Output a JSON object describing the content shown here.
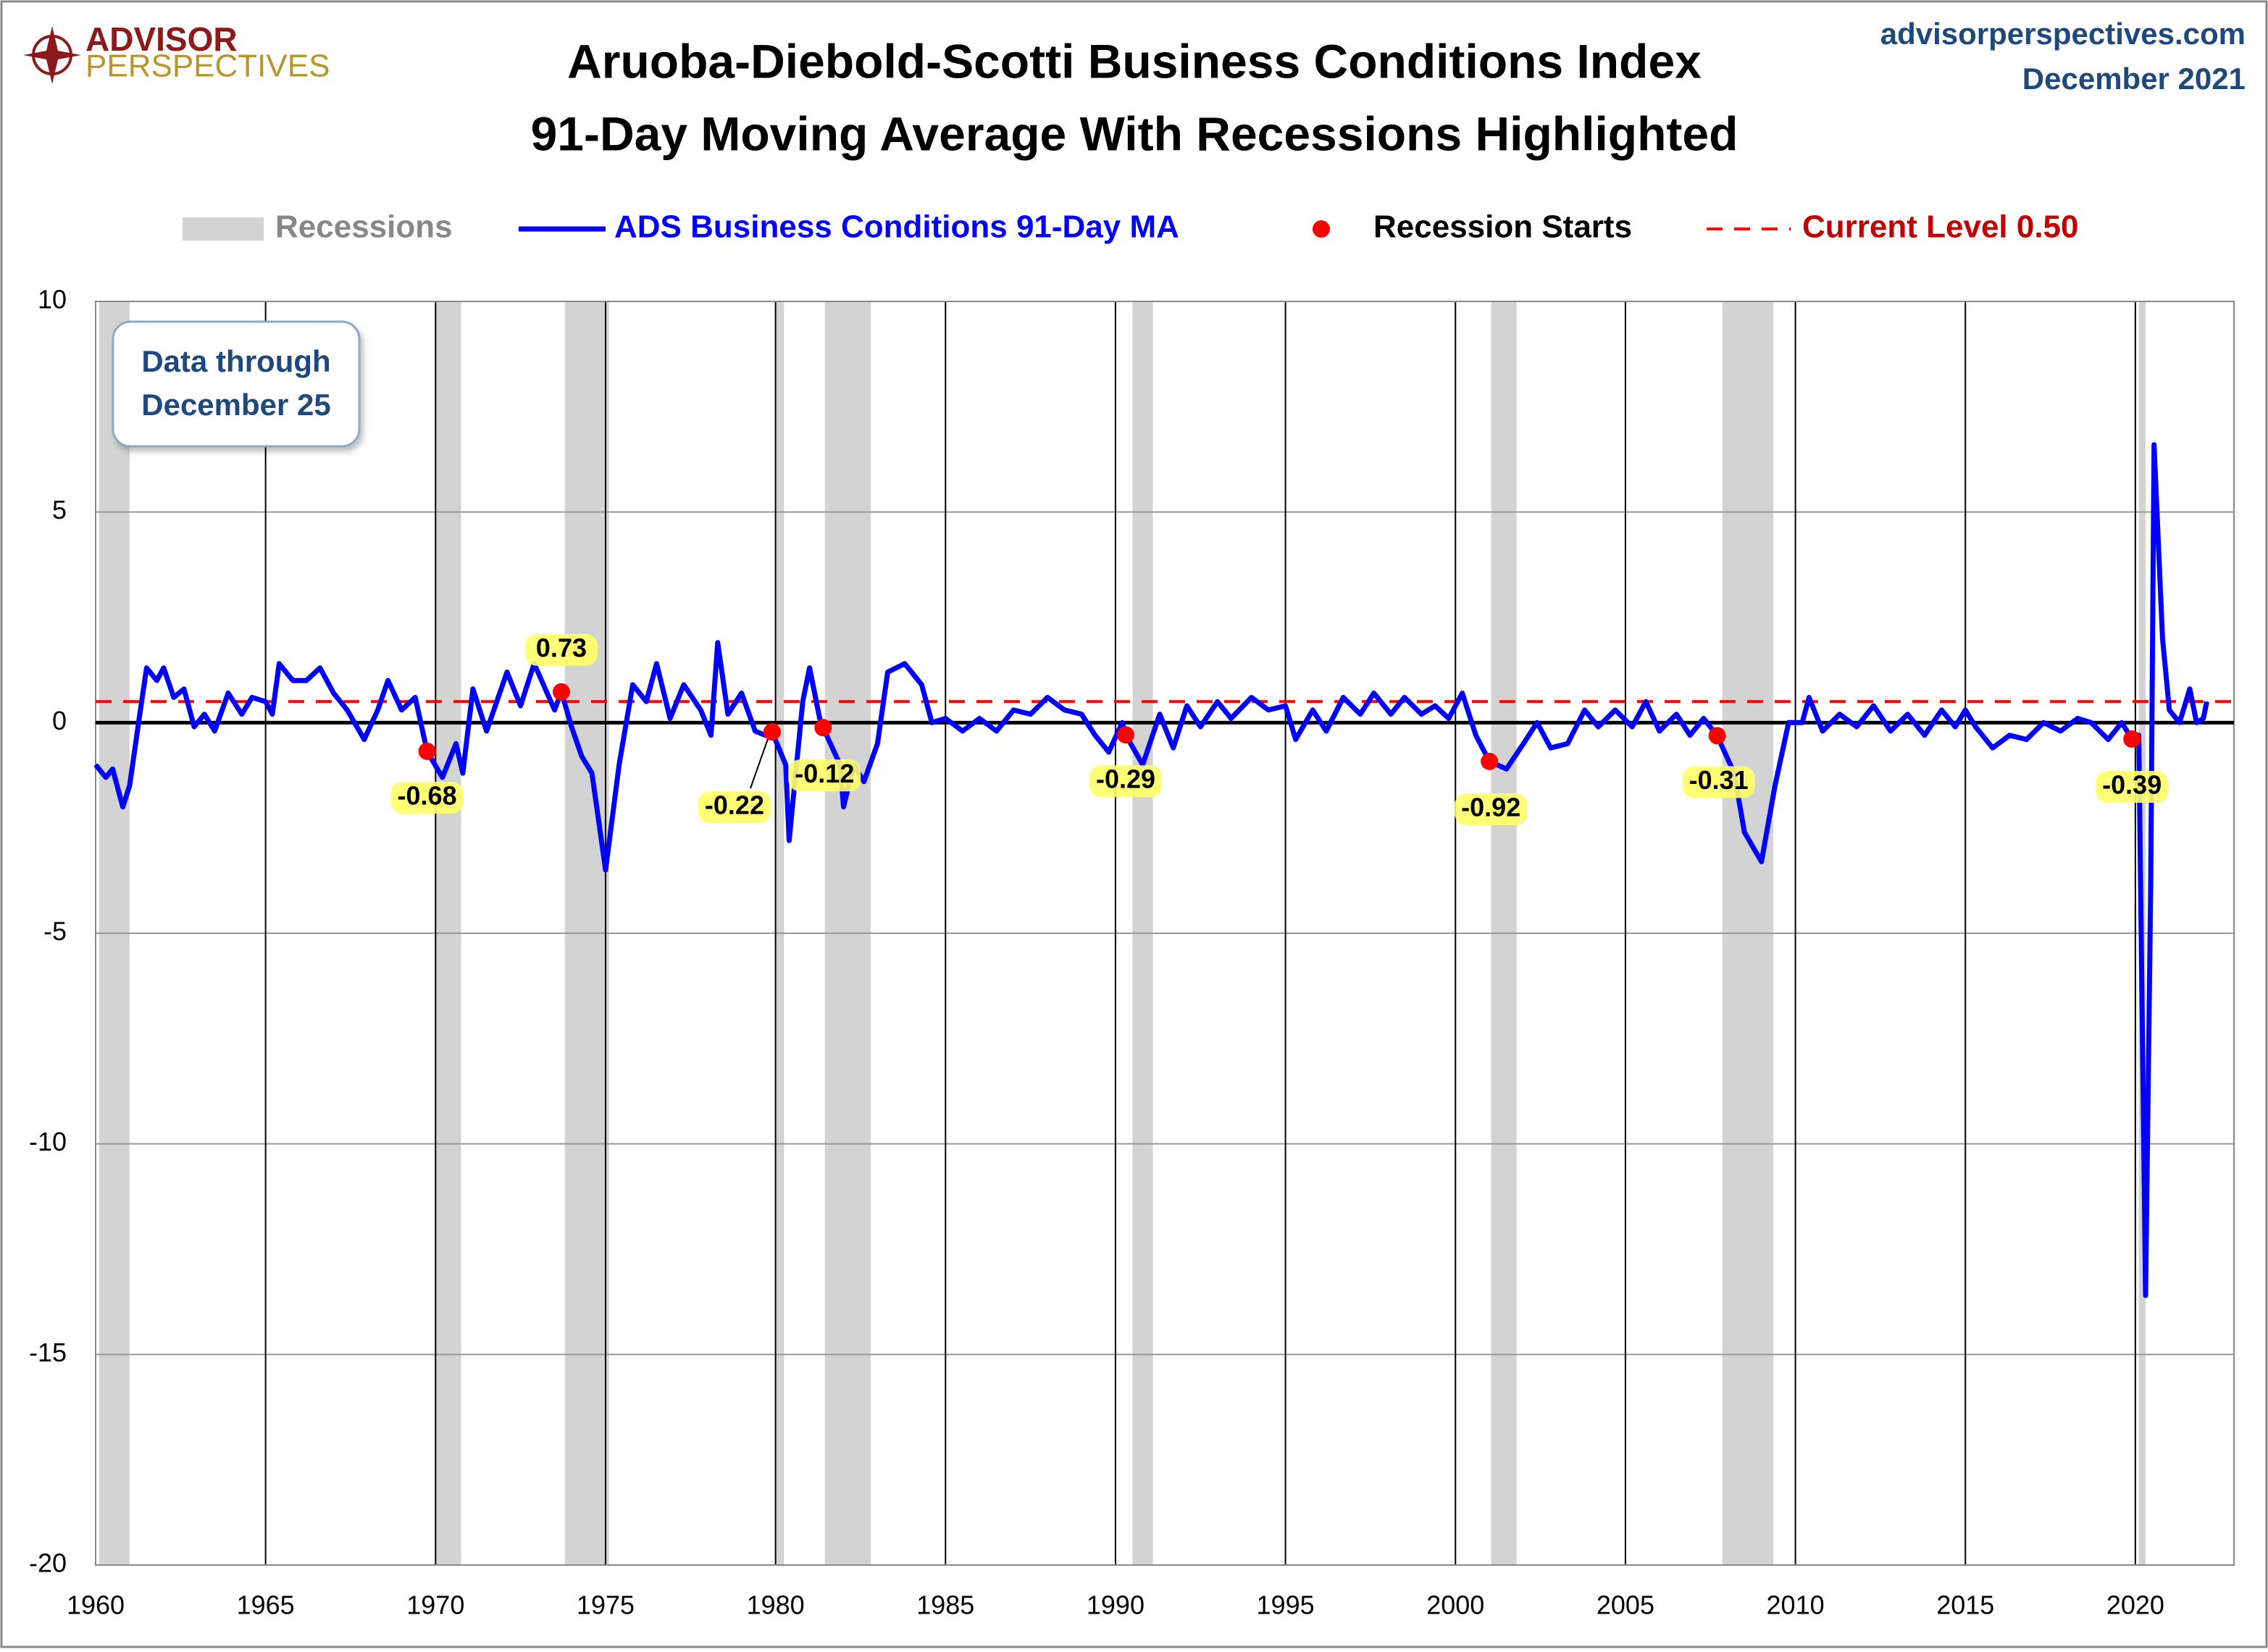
{
  "chart_data": {
    "type": "line",
    "title": "Aruoba-Diebold-Scotti Business Conditions Index",
    "subtitle": "91-Day Moving Average With Recessions Highlighted",
    "logo": {
      "top": "ADVISOR",
      "bottom": "PERSPECTIVES"
    },
    "source": "advisorperspectives.com",
    "date": "December 2021",
    "annotation": [
      "Data through",
      "December 25"
    ],
    "xlim": [
      1960,
      2022.9
    ],
    "xticks": [
      1960,
      1965,
      1970,
      1975,
      1980,
      1985,
      1990,
      1995,
      2000,
      2005,
      2010,
      2015,
      2020
    ],
    "ylim": [
      -20,
      10
    ],
    "yticks": [
      -20,
      -15,
      -10,
      -5,
      0,
      5,
      10
    ],
    "grid": true,
    "recessions": {
      "name": "Recessions",
      "color": "#d3d3d3",
      "ranges": [
        [
          1960.1,
          1961.0
        ],
        [
          1970.0,
          1970.75
        ],
        [
          1973.8,
          1975.1
        ],
        [
          1980.0,
          1980.25
        ],
        [
          1981.45,
          1982.8
        ],
        [
          1990.5,
          1991.1
        ],
        [
          2001.05,
          2001.8
        ],
        [
          2007.85,
          2009.35
        ],
        [
          2020.1,
          2020.3
        ]
      ]
    },
    "series": [
      {
        "name": "ADS Business Conditions 91-Day MA",
        "color": "#0000ff",
        "x": [
          1960.0,
          1960.3,
          1960.5,
          1960.8,
          1961.0,
          1961.3,
          1961.5,
          1961.8,
          1962.0,
          1962.3,
          1962.6,
          1962.9,
          1963.2,
          1963.5,
          1963.9,
          1964.3,
          1964.6,
          1965.0,
          1965.2,
          1965.4,
          1965.8,
          1966.2,
          1966.6,
          1967.0,
          1967.4,
          1967.9,
          1968.3,
          1968.6,
          1969.0,
          1969.4,
          1969.75,
          1970.2,
          1970.6,
          1970.8,
          1971.1,
          1971.5,
          1972.1,
          1972.5,
          1972.9,
          1973.5,
          1973.7,
          1974.0,
          1974.3,
          1974.6,
          1975.0,
          1975.4,
          1975.8,
          1976.2,
          1976.5,
          1976.9,
          1977.3,
          1977.8,
          1978.1,
          1978.3,
          1978.6,
          1979.0,
          1979.4,
          1979.7,
          1979.9,
          1980.3,
          1980.4,
          1980.8,
          1981.0,
          1981.3,
          1981.4,
          1981.9,
          1982.0,
          1982.3,
          1982.6,
          1983.0,
          1983.3,
          1983.8,
          1984.3,
          1984.6,
          1985.0,
          1985.5,
          1986.0,
          1986.5,
          1987.0,
          1987.5,
          1988.0,
          1988.5,
          1989.0,
          1989.4,
          1989.8,
          1990.2,
          1990.3,
          1990.8,
          1991.3,
          1991.7,
          1992.1,
          1992.5,
          1993.0,
          1993.4,
          1994.0,
          1994.5,
          1995.0,
          1995.3,
          1995.8,
          1996.2,
          1996.7,
          1997.2,
          1997.6,
          1998.1,
          1998.5,
          1999.0,
          1999.4,
          1999.8,
          2000.2,
          2000.6,
          2001.0,
          2001.5,
          2002.0,
          2002.4,
          2002.8,
          2003.3,
          2003.8,
          2004.2,
          2004.7,
          2005.2,
          2005.6,
          2006.0,
          2006.5,
          2006.9,
          2007.3,
          2007.7,
          2008.2,
          2008.5,
          2009.0,
          2009.4,
          2009.8,
          2010.2,
          2010.4,
          2010.8,
          2011.3,
          2011.8,
          2012.3,
          2012.8,
          2013.3,
          2013.8,
          2014.3,
          2014.7,
          2015.0,
          2015.3,
          2015.8,
          2016.3,
          2016.8,
          2017.3,
          2017.8,
          2018.3,
          2018.7,
          2019.2,
          2019.6,
          2019.9,
          2020.1,
          2020.3,
          2020.45,
          2020.55,
          2020.8,
          2021.0,
          2021.3,
          2021.6,
          2021.8,
          2022.0,
          2022.1
        ],
        "values": [
          -1.0,
          -1.3,
          -1.1,
          -2.0,
          -1.5,
          0.2,
          1.3,
          1.0,
          1.3,
          0.6,
          0.8,
          -0.1,
          0.2,
          -0.2,
          0.7,
          0.2,
          0.6,
          0.5,
          0.2,
          1.4,
          1.0,
          1.0,
          1.3,
          0.7,
          0.3,
          -0.4,
          0.3,
          1.0,
          0.3,
          0.6,
          -0.68,
          -1.3,
          -0.5,
          -1.2,
          0.8,
          -0.2,
          1.2,
          0.4,
          1.4,
          0.3,
          0.73,
          -0.1,
          -0.8,
          -1.2,
          -3.5,
          -1.0,
          0.9,
          0.5,
          1.4,
          0.1,
          0.9,
          0.3,
          -0.3,
          1.9,
          0.2,
          0.7,
          -0.2,
          -0.3,
          -0.22,
          -1.0,
          -2.8,
          0.5,
          1.3,
          0.1,
          -0.12,
          -1.0,
          -2.0,
          -1.0,
          -1.4,
          -0.5,
          1.2,
          1.4,
          0.9,
          0.0,
          0.1,
          -0.2,
          0.1,
          -0.2,
          0.3,
          0.2,
          0.6,
          0.3,
          0.2,
          -0.3,
          -0.7,
          0.0,
          -0.29,
          -1.0,
          0.2,
          -0.6,
          0.4,
          -0.1,
          0.5,
          0.1,
          0.6,
          0.3,
          0.4,
          -0.4,
          0.3,
          -0.2,
          0.6,
          0.2,
          0.7,
          0.2,
          0.6,
          0.2,
          0.4,
          0.1,
          0.7,
          -0.3,
          -0.92,
          -1.1,
          -0.5,
          0.0,
          -0.6,
          -0.5,
          0.3,
          -0.1,
          0.3,
          -0.1,
          0.5,
          -0.2,
          0.2,
          -0.3,
          0.1,
          -0.31,
          -1.2,
          -2.6,
          -3.3,
          -1.5,
          0.0,
          0.0,
          0.6,
          -0.2,
          0.2,
          -0.1,
          0.4,
          -0.2,
          0.2,
          -0.3,
          0.3,
          -0.1,
          0.3,
          -0.1,
          -0.6,
          -0.3,
          -0.4,
          0.0,
          -0.2,
          0.1,
          0.0,
          -0.4,
          0.0,
          -0.39,
          -0.3,
          -13.6,
          -4.0,
          6.6,
          2.0,
          0.3,
          0.0,
          0.8,
          0.0,
          0.1,
          0.5
        ]
      }
    ],
    "recession_starts": {
      "name": "Recession Starts",
      "color": "#ff0000",
      "x": [
        1969.75,
        1973.7,
        1979.9,
        1981.4,
        1990.3,
        2001.0,
        2007.7,
        2019.9
      ],
      "values": [
        -0.68,
        0.73,
        -0.22,
        -0.12,
        -0.29,
        -0.92,
        -0.31,
        -0.39
      ]
    },
    "current_level": {
      "name": "Current Level 0.50",
      "color": "#ff0000",
      "value": 0.5
    }
  }
}
